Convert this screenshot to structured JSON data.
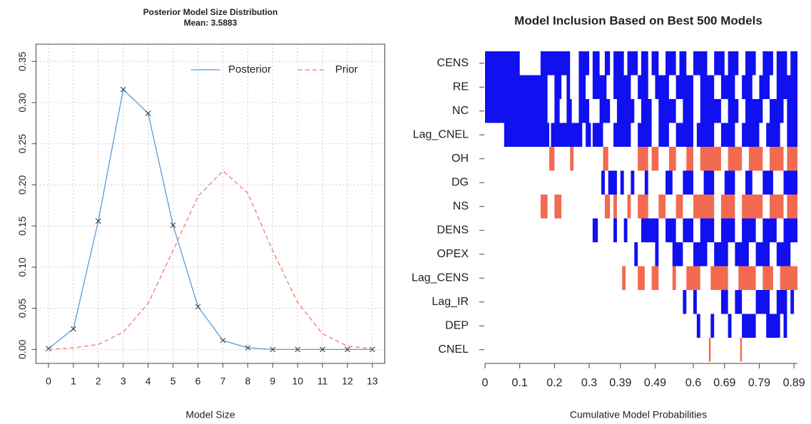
{
  "chart_data": [
    {
      "type": "line",
      "title": "Posterior Model Size Distribution",
      "subtitle": "Mean: 3.5883",
      "x_label": "Model Size",
      "x": [
        0,
        1,
        2,
        3,
        4,
        5,
        6,
        7,
        8,
        9,
        10,
        11,
        12,
        13
      ],
      "xlim": [
        -0.5,
        13.5
      ],
      "xticks": [
        0,
        1,
        2,
        3,
        4,
        5,
        6,
        7,
        8,
        9,
        10,
        11,
        12,
        13
      ],
      "ylim": [
        -0.017,
        0.371
      ],
      "yticks": [
        {
          "value": 0,
          "label": "0.00"
        },
        0.05,
        {
          "value": 0.1,
          "label": "0.10"
        },
        0.15,
        {
          "value": 0.2,
          "label": "0.20"
        },
        0.25,
        {
          "value": 0.3,
          "label": "0.30"
        },
        0.35
      ],
      "grid": true,
      "legend": "top-right",
      "series": [
        {
          "name": "Posterior",
          "color": "#5b9bd5",
          "dash": false,
          "markers": true,
          "values": [
            0.001,
            0.025,
            0.156,
            0.316,
            0.287,
            0.151,
            0.052,
            0.011,
            0.002,
            0,
            0,
            0,
            0,
            0
          ]
        },
        {
          "name": "Prior",
          "color": "#f4786a",
          "dash": true,
          "markers": false,
          "values": [
            0.0001,
            0.002,
            0.006,
            0.021,
            0.056,
            0.12,
            0.186,
            0.217,
            0.19,
            0.12,
            0.057,
            0.019,
            0.004,
            0.001
          ]
        }
      ]
    },
    {
      "type": "inclusion",
      "title": "Model Inclusion Based on Best  500  Models",
      "x_label": "Cumulative Model Probabilities",
      "xlim": [
        0,
        0.9
      ],
      "xticks": [
        0,
        0.1,
        0.2,
        0.3,
        0.39,
        0.49,
        0.6,
        0.69,
        0.79,
        0.89
      ],
      "rows": [
        {
          "name": "CENS",
          "color": "#1010f0",
          "intervals": [
            [
              0,
              0.1
            ],
            [
              0.16,
              0.245
            ],
            [
              0.27,
              0.3
            ],
            [
              0.31,
              0.33
            ],
            [
              0.345,
              0.36
            ],
            [
              0.37,
              0.4
            ],
            [
              0.41,
              0.44
            ],
            [
              0.45,
              0.47
            ],
            [
              0.48,
              0.5
            ],
            [
              0.52,
              0.55
            ],
            [
              0.56,
              0.58
            ],
            [
              0.6,
              0.64
            ],
            [
              0.66,
              0.69
            ],
            [
              0.7,
              0.73
            ],
            [
              0.75,
              0.78
            ],
            [
              0.8,
              0.83
            ],
            [
              0.84,
              0.87
            ],
            [
              0.88,
              0.9
            ]
          ]
        },
        {
          "name": "RE",
          "color": "#1010f0",
          "intervals": [
            [
              0,
              0.18
            ],
            [
              0.2,
              0.22
            ],
            [
              0.235,
              0.245
            ],
            [
              0.27,
              0.29
            ],
            [
              0.31,
              0.35
            ],
            [
              0.37,
              0.42
            ],
            [
              0.44,
              0.47
            ],
            [
              0.49,
              0.53
            ],
            [
              0.55,
              0.6
            ],
            [
              0.62,
              0.66
            ],
            [
              0.68,
              0.72
            ],
            [
              0.74,
              0.77
            ],
            [
              0.79,
              0.82
            ],
            [
              0.84,
              0.9
            ]
          ]
        },
        {
          "name": "NC",
          "color": "#1010f0",
          "intervals": [
            [
              0,
              0.18
            ],
            [
              0.2,
              0.215
            ],
            [
              0.235,
              0.25
            ],
            [
              0.27,
              0.3
            ],
            [
              0.33,
              0.36
            ],
            [
              0.38,
              0.43
            ],
            [
              0.45,
              0.48
            ],
            [
              0.5,
              0.55
            ],
            [
              0.57,
              0.6
            ],
            [
              0.62,
              0.68
            ],
            [
              0.7,
              0.73
            ],
            [
              0.75,
              0.8
            ],
            [
              0.82,
              0.86
            ],
            [
              0.87,
              0.9
            ]
          ]
        },
        {
          "name": "Lag_CNEL",
          "color": "#1010f0",
          "intervals": [
            [
              0.055,
              0.185
            ],
            [
              0.19,
              0.28
            ],
            [
              0.29,
              0.305
            ],
            [
              0.31,
              0.34
            ],
            [
              0.37,
              0.42
            ],
            [
              0.44,
              0.48
            ],
            [
              0.5,
              0.53
            ],
            [
              0.55,
              0.6
            ],
            [
              0.61,
              0.66
            ],
            [
              0.68,
              0.72
            ],
            [
              0.74,
              0.79
            ],
            [
              0.81,
              0.85
            ],
            [
              0.87,
              0.9
            ]
          ]
        },
        {
          "name": "OH",
          "color": "#f26b50",
          "intervals": [
            [
              0.185,
              0.2
            ],
            [
              0.245,
              0.255
            ],
            [
              0.34,
              0.355
            ],
            [
              0.44,
              0.47
            ],
            [
              0.48,
              0.5
            ],
            [
              0.53,
              0.55
            ],
            [
              0.58,
              0.6
            ],
            [
              0.62,
              0.68
            ],
            [
              0.7,
              0.74
            ],
            [
              0.76,
              0.8
            ],
            [
              0.82,
              0.86
            ],
            [
              0.87,
              0.9
            ]
          ]
        },
        {
          "name": "DG",
          "color": "#1010f0",
          "intervals": [
            [
              0.335,
              0.345
            ],
            [
              0.355,
              0.38
            ],
            [
              0.39,
              0.4
            ],
            [
              0.42,
              0.43
            ],
            [
              0.46,
              0.47
            ],
            [
              0.52,
              0.54
            ],
            [
              0.57,
              0.6
            ],
            [
              0.63,
              0.66
            ],
            [
              0.69,
              0.72
            ],
            [
              0.75,
              0.77
            ],
            [
              0.8,
              0.83
            ],
            [
              0.86,
              0.9
            ]
          ]
        },
        {
          "name": "NS",
          "color": "#f26b50",
          "intervals": [
            [
              0.16,
              0.18
            ],
            [
              0.2,
              0.22
            ],
            [
              0.345,
              0.36
            ],
            [
              0.37,
              0.38
            ],
            [
              0.41,
              0.42
            ],
            [
              0.44,
              0.47
            ],
            [
              0.5,
              0.52
            ],
            [
              0.55,
              0.57
            ],
            [
              0.6,
              0.66
            ],
            [
              0.68,
              0.72
            ],
            [
              0.74,
              0.8
            ],
            [
              0.82,
              0.86
            ],
            [
              0.87,
              0.9
            ]
          ]
        },
        {
          "name": "DENS",
          "color": "#1010f0",
          "intervals": [
            [
              0.31,
              0.325
            ],
            [
              0.37,
              0.38
            ],
            [
              0.4,
              0.41
            ],
            [
              0.45,
              0.5
            ],
            [
              0.52,
              0.55
            ],
            [
              0.57,
              0.6
            ],
            [
              0.62,
              0.66
            ],
            [
              0.68,
              0.72
            ],
            [
              0.74,
              0.78
            ],
            [
              0.8,
              0.84
            ],
            [
              0.86,
              0.9
            ]
          ]
        },
        {
          "name": "OPEX",
          "color": "#1010f0",
          "intervals": [
            [
              0.43,
              0.44
            ],
            [
              0.49,
              0.5
            ],
            [
              0.54,
              0.57
            ],
            [
              0.6,
              0.64
            ],
            [
              0.66,
              0.7
            ],
            [
              0.72,
              0.76
            ],
            [
              0.78,
              0.82
            ],
            [
              0.84,
              0.88
            ]
          ]
        },
        {
          "name": "Lag_CENS",
          "color": "#f26b50",
          "intervals": [
            [
              0.395,
              0.405
            ],
            [
              0.44,
              0.46
            ],
            [
              0.48,
              0.5
            ],
            [
              0.54,
              0.55
            ],
            [
              0.58,
              0.62
            ],
            [
              0.65,
              0.7
            ],
            [
              0.73,
              0.78
            ],
            [
              0.8,
              0.83
            ],
            [
              0.85,
              0.9
            ]
          ]
        },
        {
          "name": "Lag_IR",
          "color": "#1010f0",
          "intervals": [
            [
              0.57,
              0.58
            ],
            [
              0.6,
              0.61
            ],
            [
              0.68,
              0.7
            ],
            [
              0.72,
              0.74
            ],
            [
              0.78,
              0.82
            ],
            [
              0.84,
              0.87
            ],
            [
              0.88,
              0.89
            ]
          ]
        },
        {
          "name": "DEP",
          "color": "#1010f0",
          "intervals": [
            [
              0.61,
              0.62
            ],
            [
              0.65,
              0.66
            ],
            [
              0.7,
              0.71
            ],
            [
              0.74,
              0.78
            ],
            [
              0.81,
              0.85
            ],
            [
              0.86,
              0.87
            ]
          ]
        },
        {
          "name": "CNEL",
          "color": "#f26b50",
          "intervals": [
            [
              0.645,
              0.65
            ],
            [
              0.735,
              0.74
            ]
          ]
        }
      ]
    }
  ]
}
